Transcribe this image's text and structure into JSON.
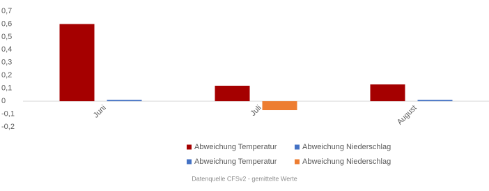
{
  "chart_data": {
    "type": "bar",
    "categories": [
      "Juni",
      "Juli",
      "August"
    ],
    "series": [
      {
        "name": "Abweichung Temperatur",
        "color": "#a50000",
        "negative_color": "#4472c4",
        "values": [
          0.6,
          0.12,
          0.13
        ]
      },
      {
        "name": "Abweichung Niederschlag",
        "color": "#4472c4",
        "negative_color": "#ed7d31",
        "values": [
          0.01,
          -0.07,
          0.01
        ]
      }
    ],
    "ylim": [
      -0.2,
      0.7
    ],
    "yticks": [
      {
        "value": -0.2,
        "label": "-0,2"
      },
      {
        "value": -0.1,
        "label": "-0,1"
      },
      0,
      {
        "value": 0.1,
        "label": "0,1"
      },
      {
        "value": 0.2,
        "label": "0,2"
      },
      {
        "value": 0.3,
        "label": "0,3"
      },
      {
        "value": 0.4,
        "label": "0,4"
      },
      {
        "value": 0.5,
        "label": "0,5"
      },
      {
        "value": 0.6,
        "label": "0,6"
      },
      {
        "value": 0.7,
        "label": "0,7"
      }
    ],
    "legend": "bottom",
    "source": "Datenquelle CFSv2 - gemittelte Werte"
  }
}
